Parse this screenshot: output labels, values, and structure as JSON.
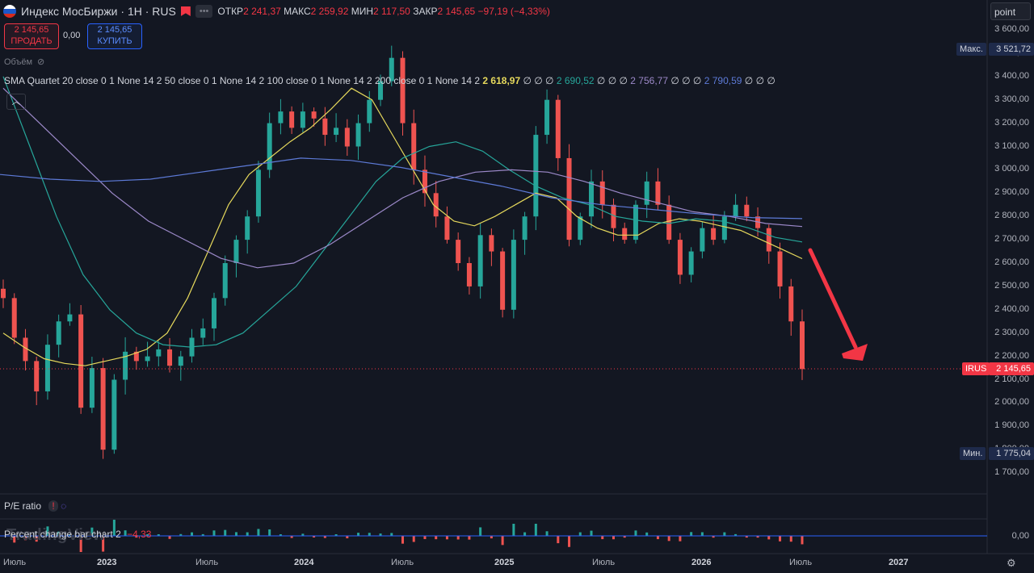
{
  "header": {
    "symbol_title": "Индекс МосБиржи · 1H · RUS",
    "open_label": "ОТКР",
    "open_value": "2 241,37",
    "high_label": "МАКС",
    "high_value": "2 259,92",
    "low_label": "МИН",
    "low_value": "2 117,50",
    "close_label": "ЗАКР",
    "close_value": "2 145,65",
    "change": "−97,19 (−4,33%)",
    "flag_colors": [
      "#ffffff",
      "#1c57c9",
      "#d52b1e"
    ]
  },
  "trade": {
    "sell_price": "2 145,65",
    "sell_label": "ПРОДАТЬ",
    "spread": "0,00",
    "buy_price": "2 145,65",
    "buy_label": "КУПИТЬ"
  },
  "volume_label": "Объём",
  "indicator": {
    "name": "SMA Quartet 20 close 0 1 None 14 2 50 close 0 1 None 14 2 100 close 0 1 None 14 2 200 close 0 1 None 14 2",
    "v1": "2 618,97",
    "v2": "2 690,52",
    "v3": "2 756,77",
    "v4": "2 790,59",
    "dots": "∅ ∅ ∅",
    "colors": [
      "#e6d95c",
      "#26a69a",
      "#9c89c9",
      "#5d7ad7"
    ]
  },
  "scale_mode": "point",
  "price_axis": {
    "labels": [
      "3 600,00",
      "3 500,00",
      "3 400,00",
      "3 300,00",
      "3 200,00",
      "3 100,00",
      "3 000,00",
      "2 900,00",
      "2 800,00",
      "2 700,00",
      "2 600,00",
      "2 500,00",
      "2 400,00",
      "2 300,00",
      "2 200,00",
      "2 100,00",
      "2 000,00",
      "1 900,00",
      "1 800,00",
      "1 700,00"
    ],
    "max_label": "Макс.",
    "max_value": "3 521,72",
    "min_label": "Мин.",
    "min_value": "1 775,04",
    "symbol_tag": "IRUS",
    "last_value": "2 145,65"
  },
  "time_axis": {
    "labels": [
      {
        "text": "Июль",
        "year": false
      },
      {
        "text": "2023",
        "year": true
      },
      {
        "text": "Июль",
        "year": false
      },
      {
        "text": "2024",
        "year": true
      },
      {
        "text": "Июль",
        "year": false
      },
      {
        "text": "2025",
        "year": true
      },
      {
        "text": "Июль",
        "year": false
      },
      {
        "text": "2026",
        "year": true
      },
      {
        "text": "Июль",
        "year": false
      },
      {
        "text": "2027",
        "year": true
      }
    ]
  },
  "pe_pane": {
    "title": "P/E ratio"
  },
  "pct_pane": {
    "title": "Percent change bar chart 2",
    "value": "−4,33",
    "axis_label": "0,00"
  },
  "watermark": "TradingView",
  "colors": {
    "up": "#26a69a",
    "down": "#ef5350",
    "background": "#131722",
    "arrow": "#f23645"
  },
  "chart_data": {
    "type": "candlestick",
    "ylim": [
      1650,
      3650
    ],
    "closes": [
      2450,
      2280,
      2180,
      2050,
      2250,
      2350,
      2380,
      1980,
      2150,
      1800,
      2100,
      2220,
      2180,
      2200,
      2230,
      2160,
      2200,
      2280,
      2320,
      2450,
      2600,
      2700,
      2800,
      3000,
      3200,
      3250,
      3180,
      3250,
      3220,
      3150,
      3180,
      3100,
      3200,
      3300,
      3380,
      3480,
      3200,
      3000,
      2900,
      2800,
      2700,
      2600,
      2500,
      2720,
      2650,
      2400,
      2700,
      2800,
      3150,
      3300,
      3050,
      2700,
      2800,
      2950,
      2850,
      2750,
      2700,
      2850,
      2950,
      2850,
      2700,
      2550,
      2650,
      2750,
      2700,
      2800,
      2850,
      2800,
      2750,
      2650,
      2500,
      2350,
      2145.65
    ],
    "sma20": [
      2300,
      2240,
      2190,
      2170,
      2160,
      2180,
      2200,
      2230,
      2300,
      2450,
      2650,
      2850,
      2980,
      3050,
      3120,
      3180,
      3260,
      3350,
      3300,
      3150,
      3000,
      2850,
      2780,
      2760,
      2800,
      2850,
      2900,
      2880,
      2800,
      2750,
      2720,
      2720,
      2770,
      2790,
      2780,
      2760,
      2740,
      2700,
      2660,
      2618.97
    ],
    "sma50": [
      3400,
      3100,
      2800,
      2550,
      2400,
      2300,
      2250,
      2240,
      2250,
      2300,
      2400,
      2500,
      2650,
      2800,
      2950,
      3050,
      3100,
      3120,
      3080,
      3000,
      2930,
      2880,
      2850,
      2800,
      2780,
      2770,
      2790,
      2780,
      2750,
      2710,
      2690.52
    ],
    "sma100": [
      3350,
      3200,
      3050,
      2900,
      2780,
      2700,
      2620,
      2580,
      2600,
      2680,
      2780,
      2880,
      2950,
      2990,
      3000,
      2990,
      2950,
      2900,
      2860,
      2820,
      2800,
      2770,
      2756.77
    ],
    "sma200": [
      2980,
      2960,
      2950,
      2960,
      2990,
      3020,
      3050,
      3040,
      3010,
      2970,
      2930,
      2880,
      2850,
      2830,
      2810,
      2795,
      2790.59
    ]
  }
}
